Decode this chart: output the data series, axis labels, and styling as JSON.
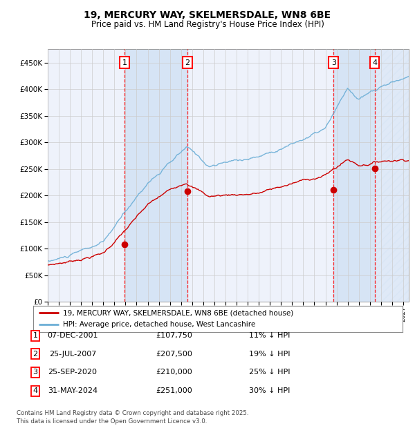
{
  "title": "19, MERCURY WAY, SKELMERSDALE, WN8 6BE",
  "subtitle": "Price paid vs. HM Land Registry's House Price Index (HPI)",
  "ylim": [
    0,
    475000
  ],
  "yticks": [
    0,
    50000,
    100000,
    150000,
    200000,
    250000,
    300000,
    350000,
    400000,
    450000
  ],
  "ytick_labels": [
    "£0",
    "£50K",
    "£100K",
    "£150K",
    "£200K",
    "£250K",
    "£300K",
    "£350K",
    "£400K",
    "£450K"
  ],
  "xlim_start": 1995.0,
  "xlim_end": 2027.5,
  "sale_dates_decimal": [
    2001.93,
    2007.56,
    2020.73,
    2024.42
  ],
  "sale_prices": [
    107750,
    207500,
    210000,
    251000
  ],
  "sale_labels": [
    "1",
    "2",
    "3",
    "4"
  ],
  "sale_date_strings": [
    "07-DEC-2001",
    "25-JUL-2007",
    "25-SEP-2020",
    "31-MAY-2024"
  ],
  "sale_price_strings": [
    "£107,750",
    "£207,500",
    "£210,000",
    "£251,000"
  ],
  "sale_hpi_strings": [
    "11% ↓ HPI",
    "19% ↓ HPI",
    "25% ↓ HPI",
    "30% ↓ HPI"
  ],
  "hpi_color": "#6baed6",
  "price_color": "#cc0000",
  "bg_color": "#ffffff",
  "plot_bg_color": "#eef2fb",
  "grid_color": "#cccccc",
  "shade_color": "#d6e4f5",
  "legend_line1": "19, MERCURY WAY, SKELMERSDALE, WN8 6BE (detached house)",
  "legend_line2": "HPI: Average price, detached house, West Lancashire",
  "footnote": "Contains HM Land Registry data © Crown copyright and database right 2025.\nThis data is licensed under the Open Government Licence v3.0."
}
